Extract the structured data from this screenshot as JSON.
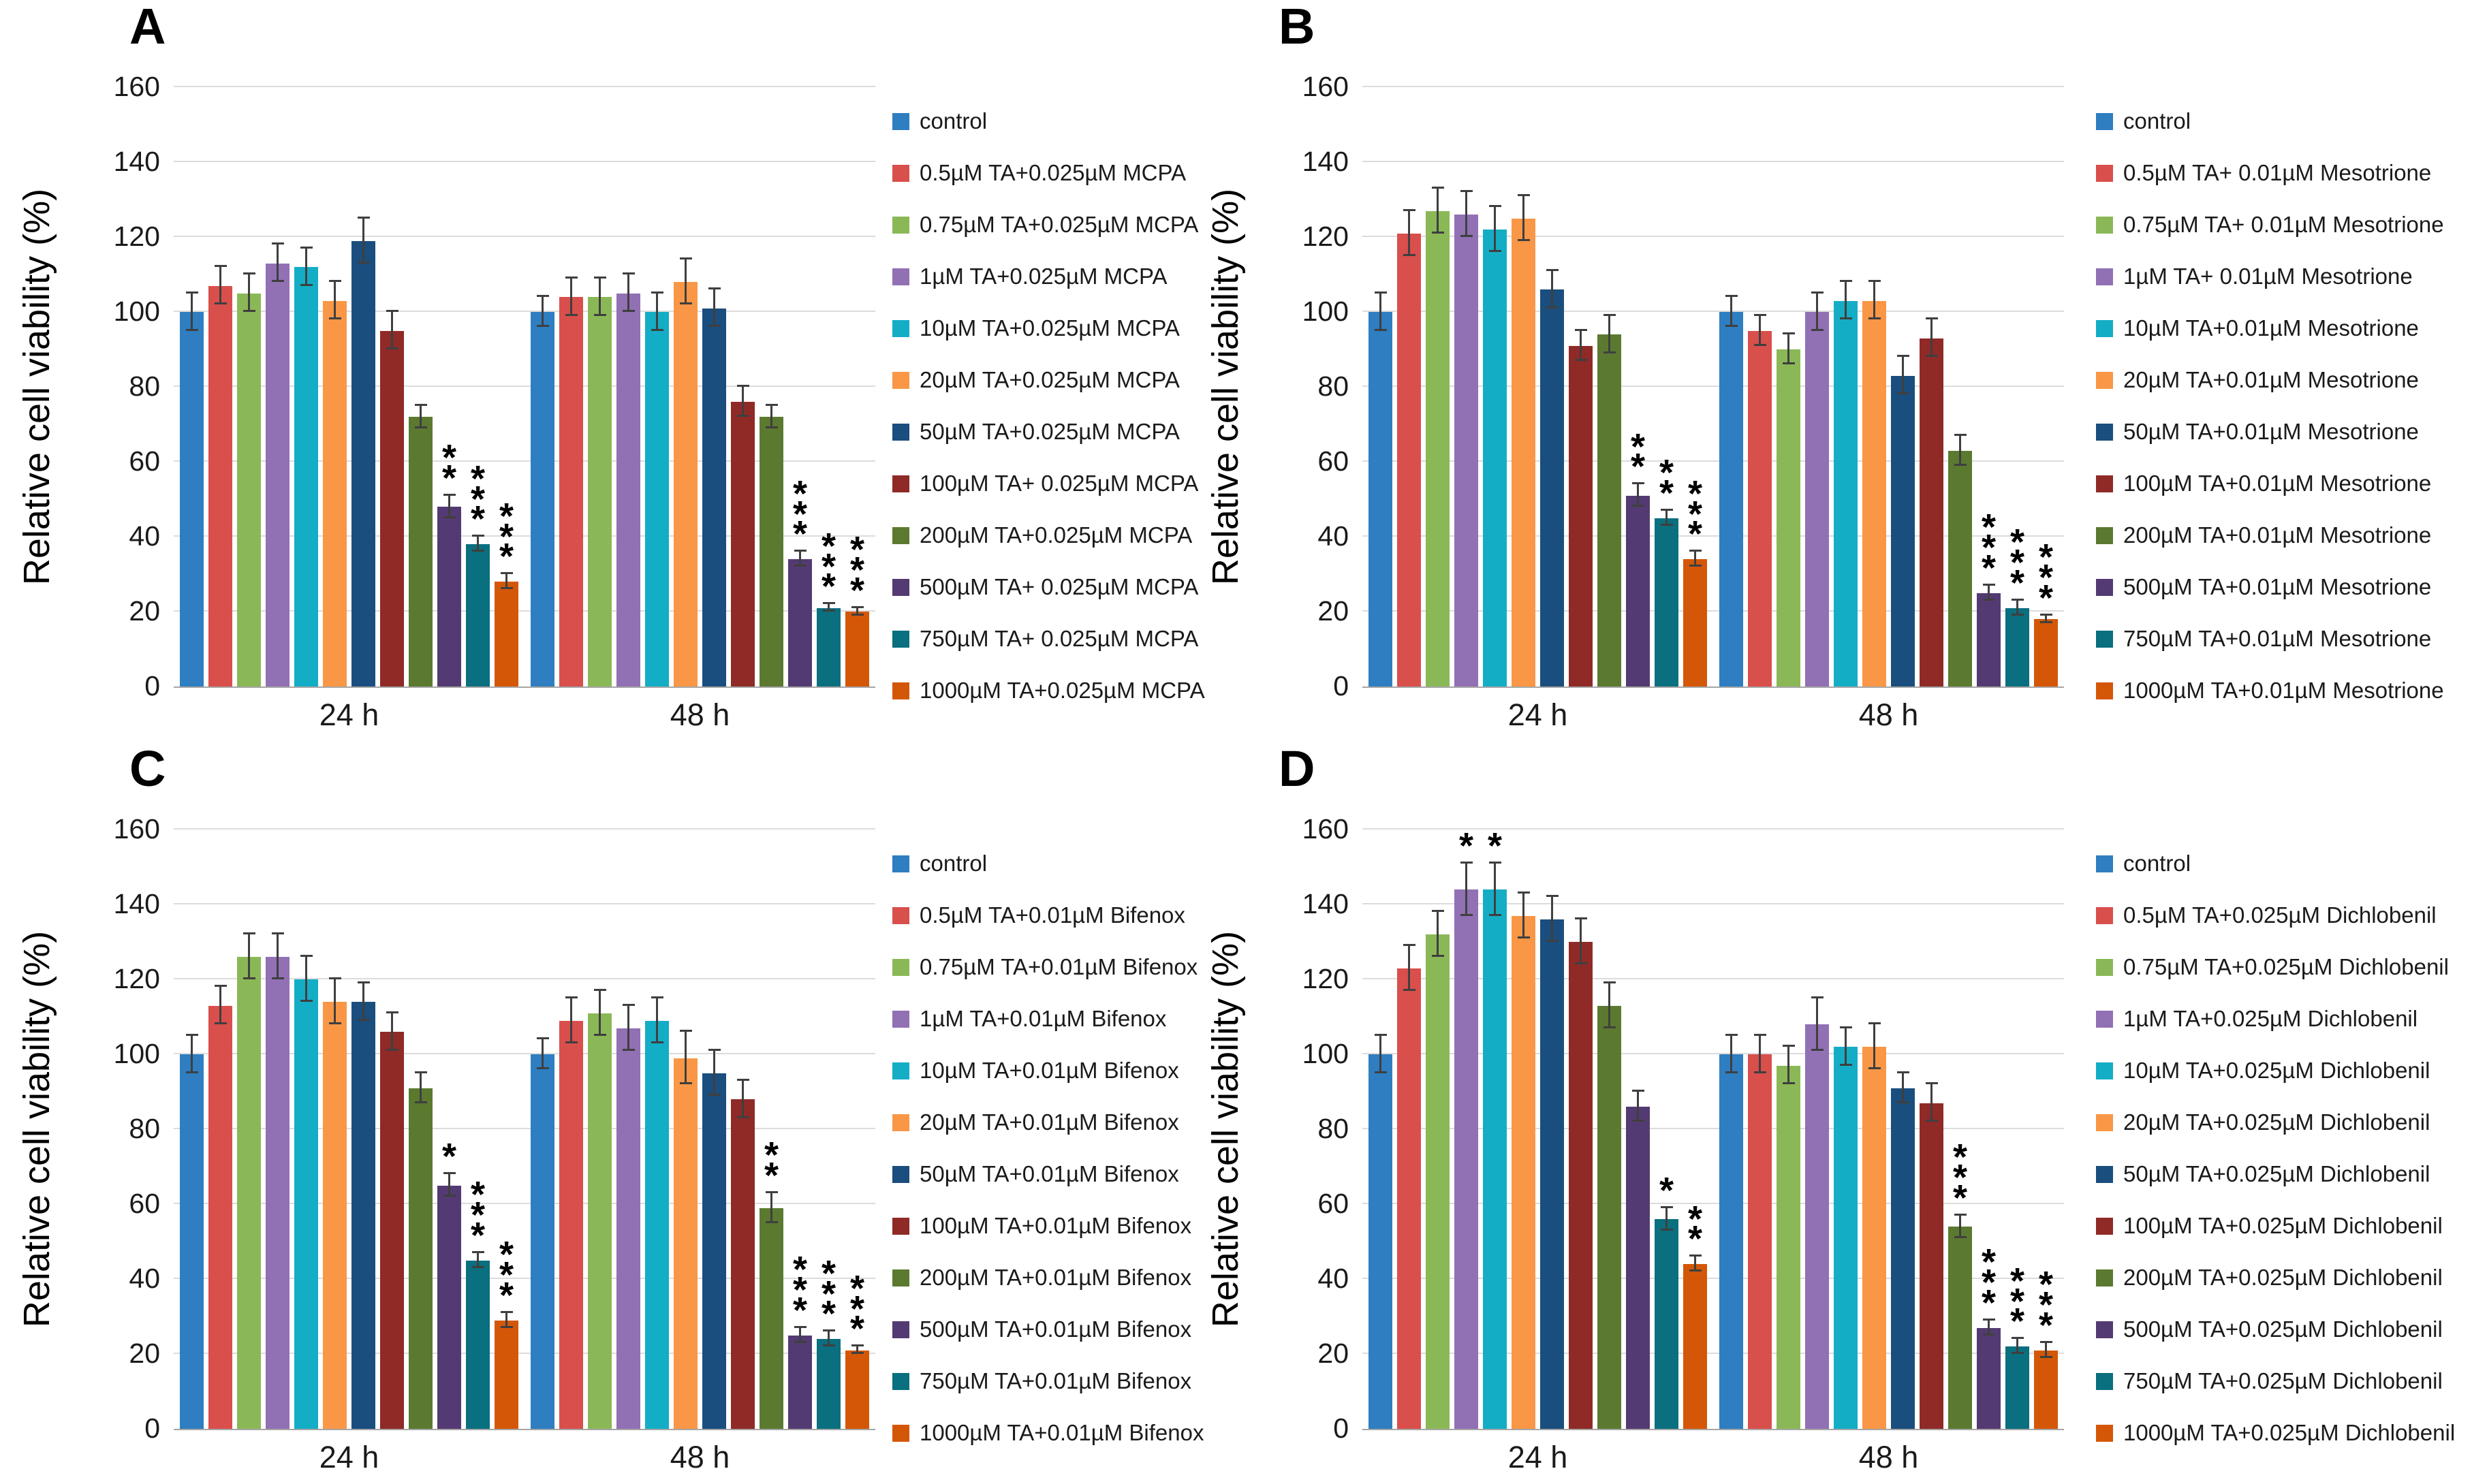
{
  "figure": {
    "ylabel": "Relative cell viability (%)",
    "yticks": [
      0,
      20,
      40,
      60,
      80,
      100,
      120,
      140,
      160
    ],
    "ymax": 160,
    "groups": [
      "24 h",
      "48 h"
    ],
    "grid_color": "#dcdcdc",
    "axis_color": "#a6a6a6",
    "error_bar_color": "#3f3f3f"
  },
  "chart_data": [
    {
      "type": "bar",
      "panel": "A",
      "ylabel": "Relative cell viability (%)",
      "ylim": [
        0,
        160
      ],
      "categories": [
        "24 h",
        "48 h"
      ],
      "series": [
        {
          "label": "control",
          "color": "#2E7EC1",
          "values": [
            100,
            100
          ],
          "errors": [
            5,
            4
          ],
          "sig": [
            "",
            ""
          ]
        },
        {
          "label": "0.5µM TA+0.025µM MCPA",
          "color": "#D94F4C",
          "values": [
            107,
            104
          ],
          "errors": [
            5,
            5
          ],
          "sig": [
            "",
            ""
          ]
        },
        {
          "label": "0.75µM TA+0.025µM MCPA",
          "color": "#8BB857",
          "values": [
            105,
            104
          ],
          "errors": [
            5,
            5
          ],
          "sig": [
            "",
            ""
          ]
        },
        {
          "label": "1µM TA+0.025µM MCPA",
          "color": "#9170B4",
          "values": [
            113,
            105
          ],
          "errors": [
            5,
            5
          ],
          "sig": [
            "",
            ""
          ]
        },
        {
          "label": "10µM TA+0.025µM MCPA",
          "color": "#14ADC6",
          "values": [
            112,
            100
          ],
          "errors": [
            5,
            5
          ],
          "sig": [
            "",
            ""
          ]
        },
        {
          "label": "20µM TA+0.025µM MCPA",
          "color": "#F99746",
          "values": [
            103,
            108
          ],
          "errors": [
            5,
            6
          ],
          "sig": [
            "",
            ""
          ]
        },
        {
          "label": "50µM TA+0.025µM MCPA",
          "color": "#1A4E7E",
          "values": [
            119,
            101
          ],
          "errors": [
            6,
            5
          ],
          "sig": [
            "",
            ""
          ]
        },
        {
          "label": "100µM TA+ 0.025µM MCPA",
          "color": "#8F2A27",
          "values": [
            95,
            76
          ],
          "errors": [
            5,
            4
          ],
          "sig": [
            "",
            ""
          ]
        },
        {
          "label": "200µM TA+0.025µM MCPA",
          "color": "#5B7A30",
          "values": [
            72,
            72
          ],
          "errors": [
            3,
            3
          ],
          "sig": [
            "",
            ""
          ]
        },
        {
          "label": "500µM TA+ 0.025µM MCPA",
          "color": "#543A72",
          "values": [
            48,
            34
          ],
          "errors": [
            3,
            2
          ],
          "sig": [
            "**",
            "***"
          ]
        },
        {
          "label": "750µM TA+ 0.025µM MCPA",
          "color": "#0A6F7E",
          "values": [
            38,
            21
          ],
          "errors": [
            2,
            1
          ],
          "sig": [
            "***",
            "***"
          ]
        },
        {
          "label": "1000µM TA+0.025µM MCPA",
          "color": "#D45708",
          "values": [
            28,
            20
          ],
          "errors": [
            2,
            1
          ],
          "sig": [
            "***",
            "***"
          ]
        }
      ]
    },
    {
      "type": "bar",
      "panel": "B",
      "ylabel": "Relative cell viability (%)",
      "ylim": [
        0,
        160
      ],
      "categories": [
        "24 h",
        "48 h"
      ],
      "series": [
        {
          "label": "control",
          "color": "#2E7EC1",
          "values": [
            100,
            100
          ],
          "errors": [
            5,
            4
          ],
          "sig": [
            "",
            ""
          ]
        },
        {
          "label": "0.5µM TA+ 0.01µM Mesotrione",
          "color": "#D94F4C",
          "values": [
            121,
            95
          ],
          "errors": [
            6,
            4
          ],
          "sig": [
            "",
            ""
          ]
        },
        {
          "label": "0.75µM TA+ 0.01µM Mesotrione",
          "color": "#8BB857",
          "values": [
            127,
            90
          ],
          "errors": [
            6,
            4
          ],
          "sig": [
            "",
            ""
          ]
        },
        {
          "label": "1µM TA+ 0.01µM Mesotrione",
          "color": "#9170B4",
          "values": [
            126,
            100
          ],
          "errors": [
            6,
            5
          ],
          "sig": [
            "",
            ""
          ]
        },
        {
          "label": "10µM TA+0.01µM Mesotrione",
          "color": "#14ADC6",
          "values": [
            122,
            103
          ],
          "errors": [
            6,
            5
          ],
          "sig": [
            "",
            ""
          ]
        },
        {
          "label": "20µM TA+0.01µM Mesotrione",
          "color": "#F99746",
          "values": [
            125,
            103
          ],
          "errors": [
            6,
            5
          ],
          "sig": [
            "",
            ""
          ]
        },
        {
          "label": "50µM TA+0.01µM Mesotrione",
          "color": "#1A4E7E",
          "values": [
            106,
            83
          ],
          "errors": [
            5,
            5
          ],
          "sig": [
            "",
            ""
          ]
        },
        {
          "label": "100µM TA+0.01µM Mesotrione",
          "color": "#8F2A27",
          "values": [
            91,
            93
          ],
          "errors": [
            4,
            5
          ],
          "sig": [
            "",
            ""
          ]
        },
        {
          "label": "200µM TA+0.01µM Mesotrione",
          "color": "#5B7A30",
          "values": [
            94,
            63
          ],
          "errors": [
            5,
            4
          ],
          "sig": [
            "",
            ""
          ]
        },
        {
          "label": "500µM TA+0.01µM Mesotrione",
          "color": "#543A72",
          "values": [
            51,
            25
          ],
          "errors": [
            3,
            2
          ],
          "sig": [
            "**",
            "***"
          ]
        },
        {
          "label": "750µM TA+0.01µM Mesotrione",
          "color": "#0A6F7E",
          "values": [
            45,
            21
          ],
          "errors": [
            2,
            2
          ],
          "sig": [
            "**",
            "***"
          ]
        },
        {
          "label": "1000µM TA+0.01µM Mesotrione",
          "color": "#D45708",
          "values": [
            34,
            18
          ],
          "errors": [
            2,
            1
          ],
          "sig": [
            "***",
            "***"
          ]
        }
      ]
    },
    {
      "type": "bar",
      "panel": "C",
      "ylabel": "Relative cell viability (%)",
      "ylim": [
        0,
        160
      ],
      "categories": [
        "24 h",
        "48 h"
      ],
      "series": [
        {
          "label": "control",
          "color": "#2E7EC1",
          "values": [
            100,
            100
          ],
          "errors": [
            5,
            4
          ],
          "sig": [
            "",
            ""
          ]
        },
        {
          "label": "0.5µM TA+0.01µM Bifenox",
          "color": "#D94F4C",
          "values": [
            113,
            109
          ],
          "errors": [
            5,
            6
          ],
          "sig": [
            "",
            ""
          ]
        },
        {
          "label": "0.75µM TA+0.01µM Bifenox",
          "color": "#8BB857",
          "values": [
            126,
            111
          ],
          "errors": [
            6,
            6
          ],
          "sig": [
            "",
            ""
          ]
        },
        {
          "label": "1µM TA+0.01µM Bifenox",
          "color": "#9170B4",
          "values": [
            126,
            107
          ],
          "errors": [
            6,
            6
          ],
          "sig": [
            "",
            ""
          ]
        },
        {
          "label": "10µM TA+0.01µM Bifenox",
          "color": "#14ADC6",
          "values": [
            120,
            109
          ],
          "errors": [
            6,
            6
          ],
          "sig": [
            "",
            ""
          ]
        },
        {
          "label": "20µM TA+0.01µM Bifenox",
          "color": "#F99746",
          "values": [
            114,
            99
          ],
          "errors": [
            6,
            7
          ],
          "sig": [
            "",
            ""
          ]
        },
        {
          "label": "50µM TA+0.01µM Bifenox",
          "color": "#1A4E7E",
          "values": [
            114,
            95
          ],
          "errors": [
            5,
            6
          ],
          "sig": [
            "",
            ""
          ]
        },
        {
          "label": "100µM TA+0.01µM Bifenox",
          "color": "#8F2A27",
          "values": [
            106,
            88
          ],
          "errors": [
            5,
            5
          ],
          "sig": [
            "",
            ""
          ]
        },
        {
          "label": "200µM TA+0.01µM Bifenox",
          "color": "#5B7A30",
          "values": [
            91,
            59
          ],
          "errors": [
            4,
            4
          ],
          "sig": [
            "",
            "**"
          ]
        },
        {
          "label": "500µM TA+0.01µM Bifenox",
          "color": "#543A72",
          "values": [
            65,
            25
          ],
          "errors": [
            3,
            2
          ],
          "sig": [
            "*",
            "***"
          ]
        },
        {
          "label": "750µM TA+0.01µM Bifenox",
          "color": "#0A6F7E",
          "values": [
            45,
            24
          ],
          "errors": [
            2,
            2
          ],
          "sig": [
            "***",
            "***"
          ]
        },
        {
          "label": "1000µM TA+0.01µM Bifenox",
          "color": "#D45708",
          "values": [
            29,
            21
          ],
          "errors": [
            2,
            1
          ],
          "sig": [
            "***",
            "***"
          ]
        }
      ]
    },
    {
      "type": "bar",
      "panel": "D",
      "ylabel": "Relative cell viability (%)",
      "ylim": [
        0,
        160
      ],
      "categories": [
        "24 h",
        "48 h"
      ],
      "series": [
        {
          "label": "control",
          "color": "#2E7EC1",
          "values": [
            100,
            100
          ],
          "errors": [
            5,
            5
          ],
          "sig": [
            "",
            ""
          ]
        },
        {
          "label": "0.5µM TA+0.025µM Dichlobenil",
          "color": "#D94F4C",
          "values": [
            123,
            100
          ],
          "errors": [
            6,
            5
          ],
          "sig": [
            "",
            ""
          ]
        },
        {
          "label": "0.75µM TA+0.025µM Dichlobenil",
          "color": "#8BB857",
          "values": [
            132,
            97
          ],
          "errors": [
            6,
            5
          ],
          "sig": [
            "",
            ""
          ]
        },
        {
          "label": "1µM TA+0.025µM Dichlobenil",
          "color": "#9170B4",
          "values": [
            144,
            108
          ],
          "errors": [
            7,
            7
          ],
          "sig": [
            "*",
            ""
          ]
        },
        {
          "label": "10µM TA+0.025µM Dichlobenil",
          "color": "#14ADC6",
          "values": [
            144,
            102
          ],
          "errors": [
            7,
            5
          ],
          "sig": [
            "*",
            ""
          ]
        },
        {
          "label": "20µM TA+0.025µM Dichlobenil",
          "color": "#F99746",
          "values": [
            137,
            102
          ],
          "errors": [
            6,
            6
          ],
          "sig": [
            "",
            ""
          ]
        },
        {
          "label": "50µM TA+0.025µM Dichlobenil",
          "color": "#1A4E7E",
          "values": [
            136,
            91
          ],
          "errors": [
            6,
            4
          ],
          "sig": [
            "",
            ""
          ]
        },
        {
          "label": "100µM TA+0.025µM Dichlobenil",
          "color": "#8F2A27",
          "values": [
            130,
            87
          ],
          "errors": [
            6,
            5
          ],
          "sig": [
            "",
            ""
          ]
        },
        {
          "label": "200µM TA+0.025µM Dichlobenil",
          "color": "#5B7A30",
          "values": [
            113,
            54
          ],
          "errors": [
            6,
            3
          ],
          "sig": [
            "",
            "***"
          ]
        },
        {
          "label": "500µM TA+0.025µM Dichlobenil",
          "color": "#543A72",
          "values": [
            86,
            27
          ],
          "errors": [
            4,
            2
          ],
          "sig": [
            "",
            "***"
          ]
        },
        {
          "label": "750µM TA+0.025µM Dichlobenil",
          "color": "#0A6F7E",
          "values": [
            56,
            22
          ],
          "errors": [
            3,
            2
          ],
          "sig": [
            "*",
            "***"
          ]
        },
        {
          "label": "1000µM TA+0.025µM Dichlobenil",
          "color": "#D45708",
          "values": [
            44,
            21
          ],
          "errors": [
            2,
            2
          ],
          "sig": [
            "**",
            "***"
          ]
        }
      ]
    }
  ]
}
